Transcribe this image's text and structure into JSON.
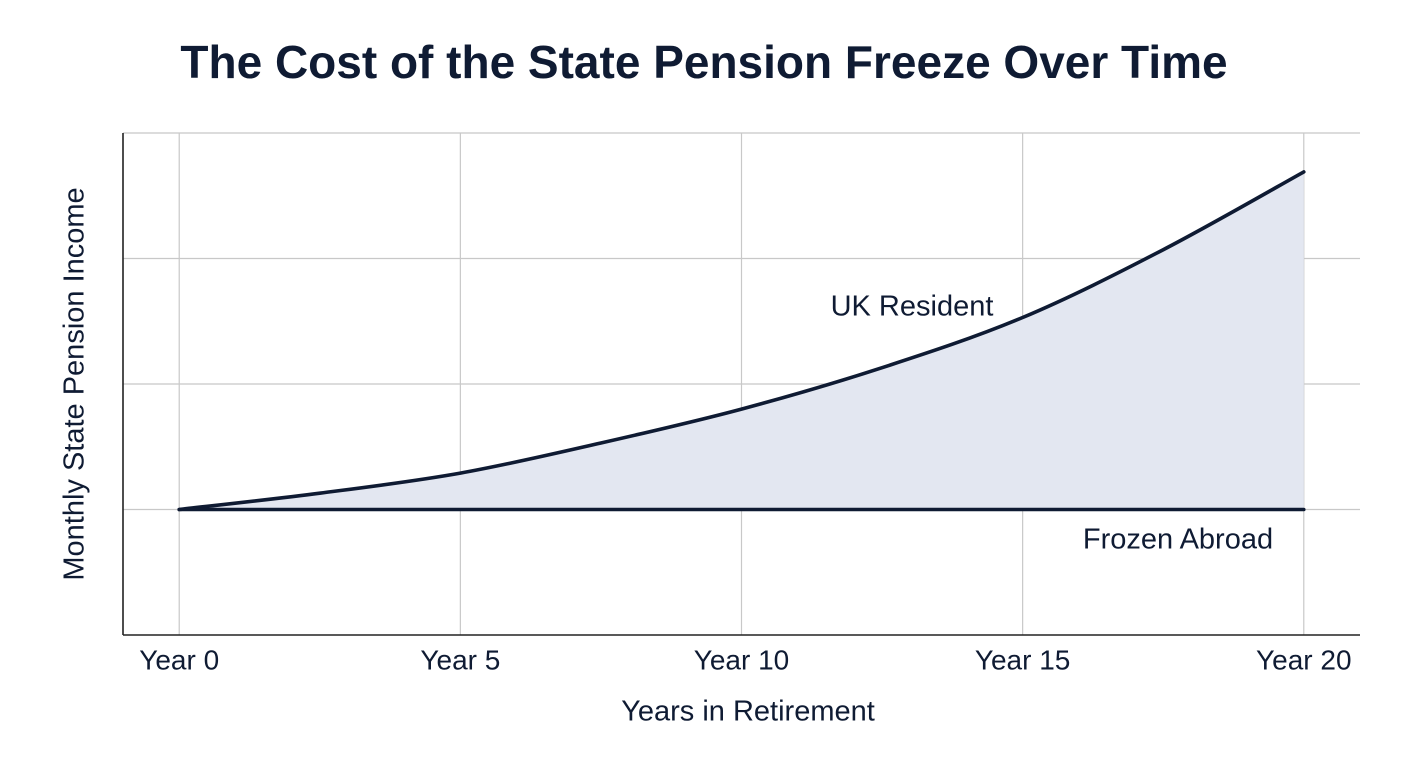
{
  "chart_data": {
    "type": "line",
    "title": "The Cost of the State Pension Freeze Over Time",
    "x_label": "Years in Retirement",
    "y_label": "Monthly State Pension Income",
    "x": [
      0,
      2.5,
      5,
      7.5,
      10,
      12.5,
      15,
      17.5,
      20
    ],
    "series": [
      {
        "name": "UK Resident",
        "color": "#0f1b33",
        "values": [
          1,
          1.13,
          1.29,
          1.53,
          1.8,
          2.13,
          2.53,
          3.07,
          3.69
        ]
      },
      {
        "name": "Frozen Abroad",
        "color": "#0f1b33",
        "values": [
          1,
          1,
          1,
          1,
          1,
          1,
          1,
          1,
          1
        ]
      }
    ],
    "fill_between": "#e3e7f1",
    "xlim": [
      -1,
      21
    ],
    "ylim": [
      0,
      4
    ],
    "xticks": [
      {
        "value": 0,
        "label": "Year 0"
      },
      {
        "value": 5,
        "label": "Year 5"
      },
      {
        "value": 10,
        "label": "Year 10"
      },
      {
        "value": 15,
        "label": "Year 15"
      },
      {
        "value": 20,
        "label": "Year 20"
      }
    ],
    "yticks": [
      1,
      2,
      3,
      4
    ],
    "grid": true
  }
}
